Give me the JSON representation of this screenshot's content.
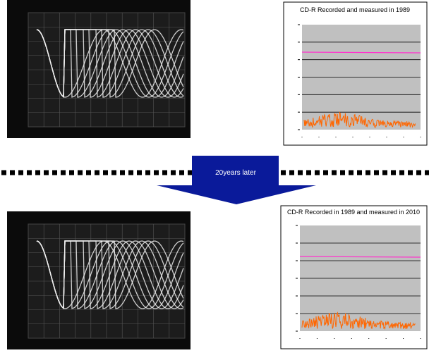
{
  "top_chart": {
    "title": "CD-R  Recorded and measured in 1989"
  },
  "arrow": {
    "label": "20years later"
  },
  "bottom_chart": {
    "title": "CD-R Recorded in 1989 and measured in 2010"
  }
}
